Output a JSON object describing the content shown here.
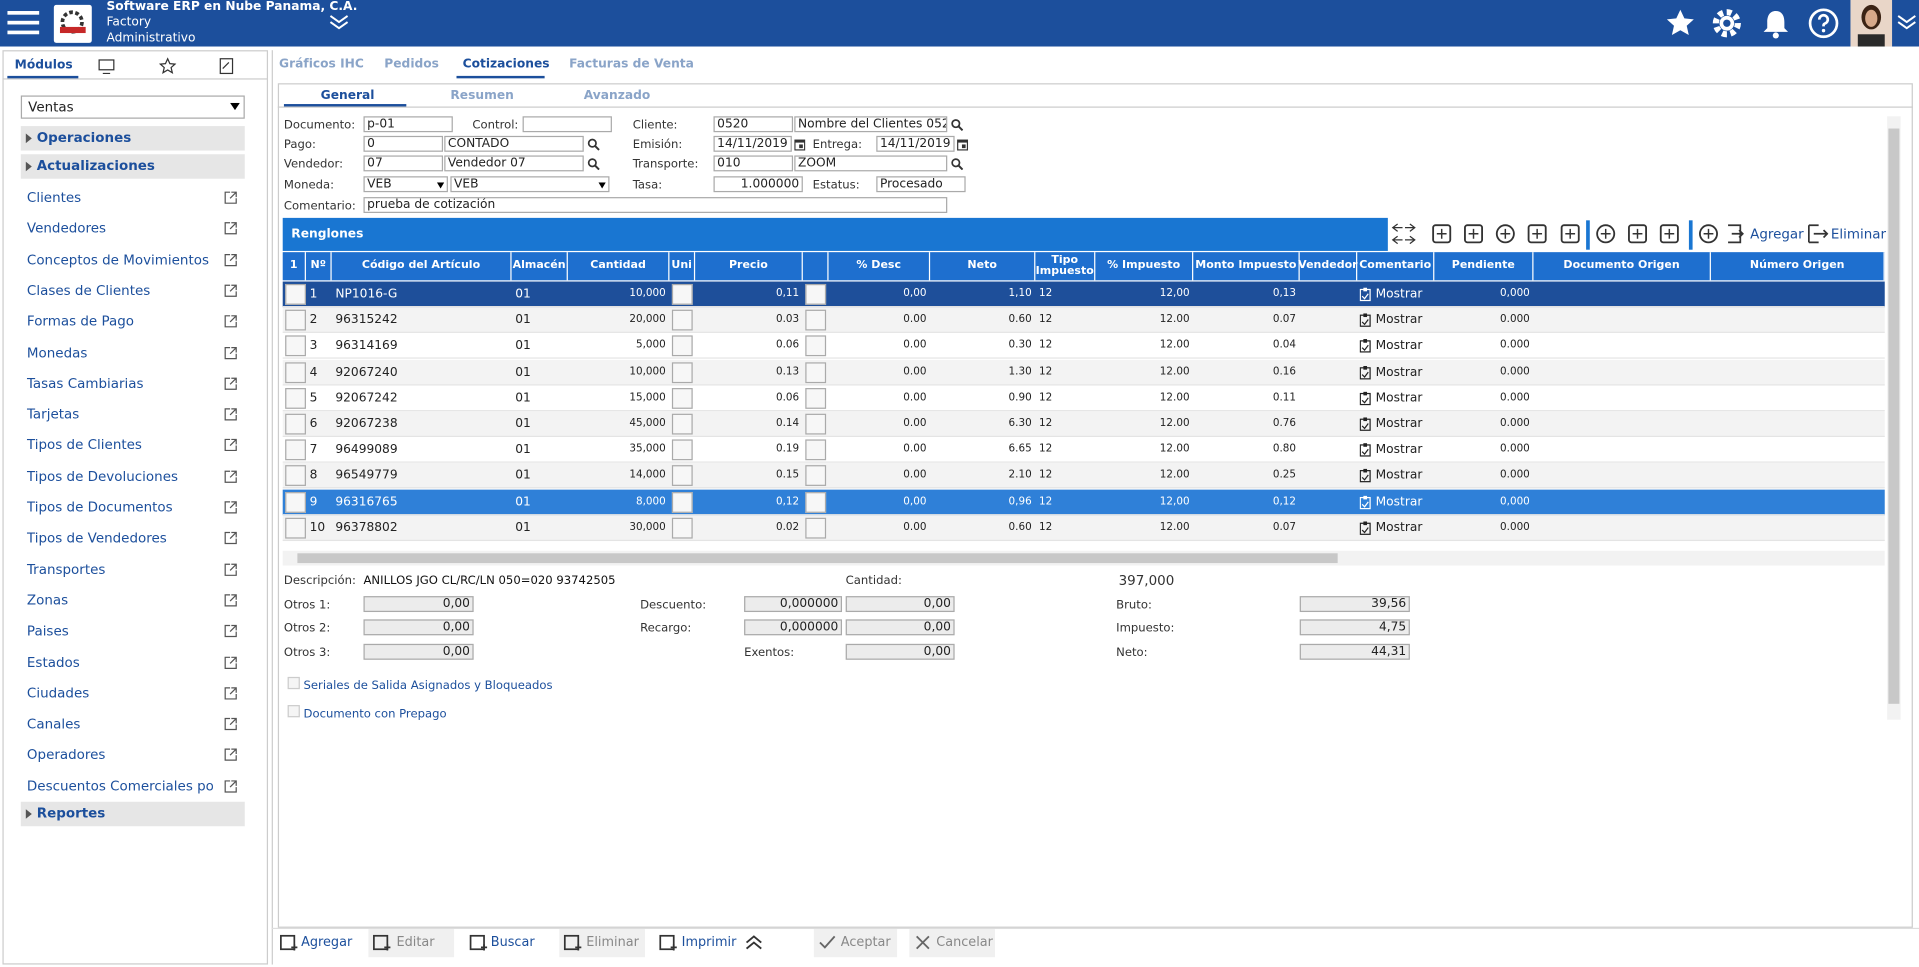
{
  "header": {
    "company": "Software ERP en Nube Panama, C.A.",
    "branch": "Factory",
    "role": "Administrativo"
  },
  "sidebar": {
    "tab": "Módulos",
    "module": "Ventas",
    "groups": [
      "Operaciones",
      "Actualizaciones"
    ],
    "items": [
      "Clientes",
      "Vendedores",
      "Conceptos de Movimientos",
      "Clases de Clientes",
      "Formas de Pago",
      "Monedas",
      "Tasas Cambiarias",
      "Tarjetas",
      "Tipos de Clientes",
      "Tipos de Devoluciones",
      "Tipos de Documentos",
      "Tipos de Vendedores",
      "Transportes",
      "Zonas",
      "Paises",
      "Estados",
      "Ciudades",
      "Canales",
      "Operadores",
      "Descuentos Comerciales por '"
    ],
    "reports": "Reportes"
  },
  "tabs": [
    "Gráficos IHC",
    "Pedidos",
    "Cotizaciones",
    "Facturas de Venta"
  ],
  "subtabs": [
    "General",
    "Resumen",
    "Avanzado"
  ],
  "form": {
    "fields": [
      {
        "label": "Documento:",
        "values": [
          "p-01"
        ]
      },
      {
        "label": "Control:",
        "values": []
      },
      {
        "label": "Cliente:",
        "values": [
          "0520",
          "Nombre del Clientes 052"
        ]
      },
      {
        "label": "Pago:",
        "values": [
          "0",
          "CONTADO"
        ]
      },
      {
        "label": "Emisión:",
        "values": [
          "14/11/2019"
        ]
      },
      {
        "label": "Entrega:",
        "values": [
          "14/11/2019"
        ]
      },
      {
        "label": "Vendedor:",
        "values": [
          "07",
          "Vendedor 07"
        ]
      },
      {
        "label": "Transporte:",
        "values": [
          "010",
          "ZOOM"
        ]
      },
      {
        "label": "Moneda:",
        "values": [
          "VEB",
          "VEB"
        ]
      },
      {
        "label": "Tasa:",
        "values": [
          "1.000000"
        ]
      },
      {
        "label": "Estatus:",
        "values": [
          "Procesado"
        ]
      },
      {
        "label": "Comentario:",
        "values": [
          "prueba de cotización"
        ]
      }
    ]
  },
  "grid": {
    "title": "Renglones",
    "actions": [
      "Agregar",
      "Eliminar"
    ],
    "columns": [
      "1",
      "Nº",
      "Código del Artículo",
      "Almacén",
      "Cantidad",
      "Uni",
      "Precio",
      "% Desc",
      "Neto",
      "Tipo Impuesto",
      "% Impuesto",
      "Monto Impuesto",
      "Vendedor",
      "Comentario",
      "Pendiente",
      "Documento Origen",
      "Número Origen"
    ],
    "rows": [
      [
        "1",
        "NP1016-G",
        "01",
        "10,000",
        "0,11",
        "0,00",
        "1,10",
        "12",
        "12,00",
        "0,13",
        "Mostrar",
        "0,000"
      ],
      [
        "2",
        "96315242",
        "01",
        "20,000",
        "0.03",
        "0.00",
        "0.60",
        "12",
        "12.00",
        "0.07",
        "Mostrar",
        "0.000"
      ],
      [
        "3",
        "96314169",
        "01",
        "5,000",
        "0.06",
        "0.00",
        "0.30",
        "12",
        "12.00",
        "0.04",
        "Mostrar",
        "0.000"
      ],
      [
        "4",
        "92067240",
        "01",
        "10,000",
        "0.13",
        "0.00",
        "1.30",
        "12",
        "12.00",
        "0.16",
        "Mostrar",
        "0.000"
      ],
      [
        "5",
        "92067242",
        "01",
        "15,000",
        "0.06",
        "0.00",
        "0.90",
        "12",
        "12.00",
        "0.11",
        "Mostrar",
        "0.000"
      ],
      [
        "6",
        "92067238",
        "01",
        "45,000",
        "0.14",
        "0.00",
        "6.30",
        "12",
        "12.00",
        "0.76",
        "Mostrar",
        "0.000"
      ],
      [
        "7",
        "96499089",
        "01",
        "35,000",
        "0.19",
        "0.00",
        "6.65",
        "12",
        "12.00",
        "0.80",
        "Mostrar",
        "0.000"
      ],
      [
        "8",
        "96549779",
        "01",
        "14,000",
        "0.15",
        "0.00",
        "2.10",
        "12",
        "12.00",
        "0.25",
        "Mostrar",
        "0.000"
      ],
      [
        "9",
        "96316765",
        "01",
        "8,000",
        "0,12",
        "0,00",
        "0,96",
        "12",
        "12,00",
        "0,12",
        "Mostrar",
        "0,000"
      ],
      [
        "10",
        "96378802",
        "01",
        "30,000",
        "0.02",
        "0.00",
        "0.60",
        "12",
        "12.00",
        "0.07",
        "Mostrar",
        "0.000"
      ]
    ]
  },
  "summary": {
    "description_label": "Descripción:",
    "description": "ANILLOS JGO CL/RC/LN 050=020 93742505",
    "quantity_label": "Cantidad:",
    "quantity": "397,000",
    "fields": [
      {
        "label": "Otros 1:",
        "values": [
          "0,00"
        ]
      },
      {
        "label": "Descuento:",
        "values": [
          "0,000000",
          "0,00"
        ]
      },
      {
        "label": "Bruto:",
        "values": [
          "39,56"
        ]
      },
      {
        "label": "Otros 2:",
        "values": [
          "0,00"
        ]
      },
      {
        "label": "Recargo:",
        "values": [
          "0,000000",
          "0,00"
        ]
      },
      {
        "label": "Impuesto:",
        "values": [
          "4,75"
        ]
      },
      {
        "label": "Otros 3:",
        "values": [
          "0,00"
        ]
      },
      {
        "label": "Exentos:",
        "values": [
          "0,00"
        ]
      },
      {
        "label": "Neto:",
        "values": [
          "44,31"
        ]
      }
    ]
  },
  "options": [
    "Seriales de Salida Asignados y Bloqueados",
    "Documento con Prepago"
  ],
  "buttons": [
    "Agregar",
    "Editar",
    "Buscar",
    "Eliminar",
    "Imprimir",
    "Aceptar",
    "Cancelar"
  ]
}
